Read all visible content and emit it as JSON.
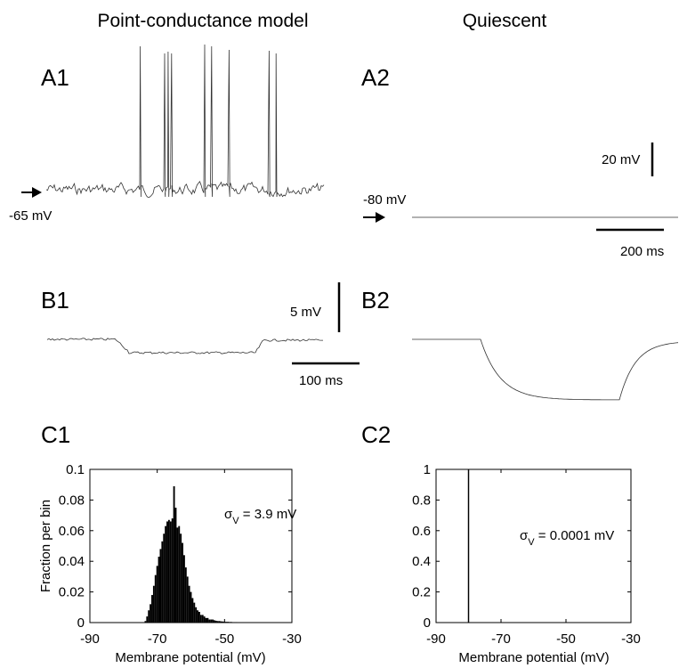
{
  "figure": {
    "left_title": "Point-conductance model",
    "right_title": "Quiescent",
    "panels": {
      "A1": "A1",
      "A2": "A2",
      "B1": "B1",
      "B2": "B2",
      "C1": "C1",
      "C2": "C2"
    },
    "annotations": {
      "a1_arrow_label": "-65 mV",
      "a2_arrow_label": "-80 mV",
      "scale_20mv": "20 mV",
      "scale_200ms": "200 ms",
      "scale_5mv": "5 mV",
      "scale_100ms": "100 ms",
      "c1_sigma_label": "σ",
      "c1_sigma_sub": "V",
      "c1_sigma_value": " = 3.9 mV",
      "c2_sigma_label": "σ",
      "c2_sigma_sub": "V",
      "c2_sigma_value": " = 0.0001 mV"
    }
  },
  "chart_data": [
    {
      "id": "A1",
      "type": "line",
      "title": "Point-conductance model",
      "description_visible": "membrane potential trace with spikes",
      "baseline_mV": -65,
      "spike_times_ms": [
        270,
        340,
        350,
        360,
        455,
        475,
        525,
        640,
        660
      ],
      "scale_bars": {
        "voltage": "20 mV",
        "time": "200 ms"
      }
    },
    {
      "id": "A2",
      "type": "line",
      "title": "Quiescent",
      "baseline_mV": -80,
      "scale_bars": {
        "voltage": "20 mV",
        "time": "200 ms"
      }
    },
    {
      "id": "B1",
      "type": "line",
      "scale_bars": {
        "voltage": "5 mV",
        "time": "100 ms"
      }
    },
    {
      "id": "B2",
      "type": "line",
      "scale_bars": {
        "voltage": "5 mV",
        "time": "100 ms"
      }
    },
    {
      "id": "C1",
      "type": "bar",
      "xlabel": "Membrane potential (mV)",
      "ylabel": "Fraction per bin",
      "xlim": [
        -90,
        -30
      ],
      "ylim": [
        0,
        0.1
      ],
      "xticks": [
        "-90",
        "-70",
        "-50",
        "-30"
      ],
      "yticks": [
        "0",
        "0.02",
        "0.04",
        "0.06",
        "0.08",
        "0.1"
      ],
      "annotation": "σV = 3.9 mV",
      "bins_mV": [
        -73.5,
        -73,
        -72.5,
        -72,
        -71.5,
        -71,
        -70.5,
        -70,
        -69.5,
        -69,
        -68.5,
        -68,
        -67.5,
        -67,
        -66.5,
        -66,
        -65.5,
        -65,
        -64.5,
        -64,
        -63.5,
        -63,
        -62.5,
        -62,
        -61.5,
        -61,
        -60.5,
        -60,
        -59.5,
        -59,
        -58.5,
        -58,
        -57.5,
        -57,
        -56.5,
        -56,
        -55.5,
        -55,
        -54.5,
        -54,
        -53.5,
        -53,
        -52.5,
        -52,
        -51.5,
        -51,
        -50.5,
        -50,
        -49.5,
        -49,
        -48.5,
        -48,
        -47.5,
        -47,
        -46.5,
        -46,
        -45.5,
        -45,
        -44.5,
        -44
      ],
      "values": [
        0.001,
        0.004,
        0.008,
        0.012,
        0.018,
        0.024,
        0.031,
        0.037,
        0.043,
        0.048,
        0.053,
        0.058,
        0.063,
        0.066,
        0.067,
        0.066,
        0.068,
        0.089,
        0.075,
        0.062,
        0.063,
        0.058,
        0.052,
        0.044,
        0.036,
        0.03,
        0.024,
        0.02,
        0.016,
        0.013,
        0.01,
        0.008,
        0.007,
        0.005,
        0.005,
        0.004,
        0.003,
        0.003,
        0.002,
        0.002,
        0.002,
        0.0015,
        0.0012,
        0.001,
        0.001,
        0.0008,
        0.0007,
        0.0006,
        0.0005,
        0.0005,
        0.0004,
        0.0004,
        0.0003,
        0.0003,
        0.0003,
        0.0002,
        0.0002,
        0.0002,
        0.0001,
        0.0001
      ]
    },
    {
      "id": "C2",
      "type": "bar",
      "xlabel": "Membrane potential (mV)",
      "xlim": [
        -90,
        -30
      ],
      "ylim": [
        0,
        1
      ],
      "xticks": [
        "-90",
        "-70",
        "-50",
        "-30"
      ],
      "yticks": [
        "0",
        "0.2",
        "0.4",
        "0.6",
        "0.8",
        "1"
      ],
      "annotation": "σV = 0.0001 mV",
      "bins_mV": [
        -80
      ],
      "values": [
        1
      ]
    }
  ]
}
